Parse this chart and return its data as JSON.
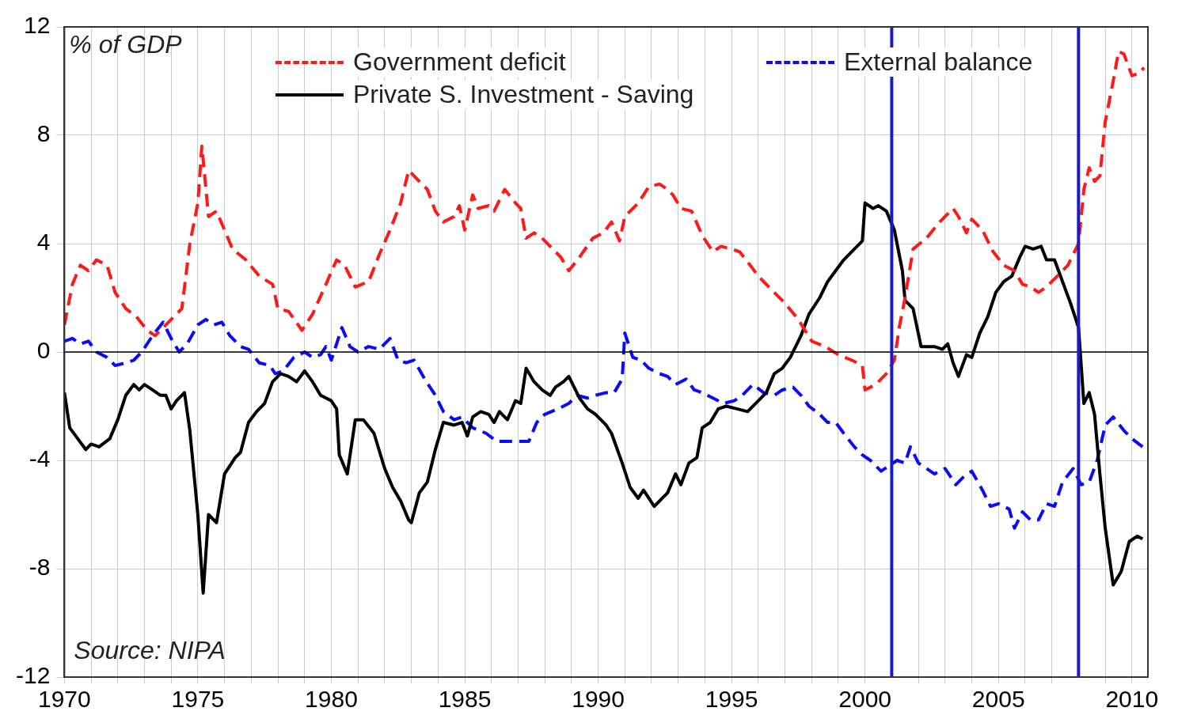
{
  "chart_data": {
    "type": "line",
    "annotations": [
      "% of GDP",
      "Source: NIPA"
    ],
    "xlim": [
      1970,
      2010.6
    ],
    "xticks": [
      1970,
      {
        "value": 1971,
        "label": null
      },
      {
        "value": 1972,
        "label": null
      },
      {
        "value": 1973,
        "label": null
      },
      {
        "value": 1974,
        "label": null
      },
      1975,
      {
        "value": 1976,
        "label": null
      },
      {
        "value": 1977,
        "label": null
      },
      {
        "value": 1978,
        "label": null
      },
      {
        "value": 1979,
        "label": null
      },
      1980,
      {
        "value": 1981,
        "label": null
      },
      {
        "value": 1982,
        "label": null
      },
      {
        "value": 1983,
        "label": null
      },
      {
        "value": 1984,
        "label": null
      },
      1985,
      {
        "value": 1986,
        "label": null
      },
      {
        "value": 1987,
        "label": null
      },
      {
        "value": 1988,
        "label": null
      },
      {
        "value": 1989,
        "label": null
      },
      1990,
      {
        "value": 1991,
        "label": null
      },
      {
        "value": 1992,
        "label": null
      },
      {
        "value": 1993,
        "label": null
      },
      {
        "value": 1994,
        "label": null
      },
      1995,
      {
        "value": 1996,
        "label": null
      },
      {
        "value": 1997,
        "label": null
      },
      {
        "value": 1998,
        "label": null
      },
      {
        "value": 1999,
        "label": null
      },
      2000,
      {
        "value": 2002,
        "label": null
      },
      {
        "value": 2003,
        "label": null
      },
      {
        "value": 2004,
        "label": null
      },
      2005,
      {
        "value": 2006,
        "label": null
      },
      {
        "value": 2007,
        "label": null
      },
      {
        "value": 2009,
        "label": null
      },
      2010
    ],
    "ylim": [
      -12,
      12
    ],
    "yticks": [
      -12,
      -8,
      -4,
      0,
      4,
      8,
      12
    ],
    "grid": true,
    "legend": "top",
    "marker": "none",
    "ref_lines": [
      {
        "axis": "y",
        "value": 0,
        "color": "#000000"
      },
      {
        "axis": "x",
        "value": 2001,
        "color": "#1a1acc"
      },
      {
        "axis": "x",
        "value": 2008,
        "color": "#1a1acc"
      }
    ],
    "series": [
      {
        "name": "Government deficit",
        "color": "#ff1a1a",
        "line_style": "dashed",
        "x": [
          1970.0,
          1970.3,
          1970.6,
          1970.9,
          1971.2,
          1971.6,
          1971.9,
          1972.3,
          1972.7,
          1973.1,
          1973.4,
          1973.7,
          1974.0,
          1974.4,
          1974.7,
          1975.0,
          1975.15,
          1975.4,
          1975.7,
          1976.0,
          1976.3,
          1976.8,
          1977.3,
          1977.8,
          1978.0,
          1978.4,
          1978.9,
          1979.3,
          1979.8,
          1980.2,
          1980.5,
          1980.9,
          1981.4,
          1981.8,
          1982.2,
          1982.6,
          1982.9,
          1983.2,
          1983.6,
          1983.9,
          1984.2,
          1984.6,
          1984.8,
          1985.0,
          1985.3,
          1985.5,
          1985.9,
          1986.1,
          1986.5,
          1986.9,
          1987.1,
          1987.3,
          1987.6,
          1987.9,
          1988.3,
          1988.6,
          1988.9,
          1989.3,
          1989.8,
          1990.2,
          1990.5,
          1990.8,
          1991.0,
          1991.5,
          1991.9,
          1992.3,
          1992.6,
          1992.8,
          1993.1,
          1993.5,
          1993.9,
          1994.3,
          1994.6,
          1995.0,
          1995.3,
          1995.7,
          1996.0,
          1996.5,
          1997.0,
          1997.5,
          1998.0,
          1998.5,
          1999.0,
          1999.5,
          1999.9,
          2000.0,
          2000.4,
          2000.8,
          2001.1,
          2001.3,
          2001.5,
          2001.8,
          2002.3,
          2002.8,
          2003.3,
          2003.5,
          2003.6,
          2003.8,
          2004.0,
          2004.4,
          2004.8,
          2005.2,
          2005.6,
          2005.9,
          2006.2,
          2006.5,
          2006.8,
          2007.2,
          2007.6,
          2008.0,
          2008.2,
          2008.4,
          2008.6,
          2008.8,
          2009.0,
          2009.3,
          2009.5,
          2009.7,
          2010.0,
          2010.3,
          2010.45
        ],
        "values": [
          1.0,
          2.5,
          3.2,
          3.0,
          3.4,
          3.2,
          2.2,
          1.6,
          1.3,
          0.8,
          0.6,
          0.9,
          1.2,
          1.6,
          4.0,
          5.5,
          7.6,
          5.0,
          5.2,
          4.5,
          3.8,
          3.4,
          2.8,
          2.5,
          1.6,
          1.5,
          0.8,
          1.4,
          2.5,
          3.4,
          3.2,
          2.4,
          2.6,
          3.6,
          4.5,
          5.5,
          6.7,
          6.4,
          6.0,
          5.2,
          4.8,
          5.0,
          5.4,
          4.5,
          5.8,
          5.3,
          5.4,
          5.2,
          6.0,
          5.5,
          5.3,
          4.2,
          4.4,
          4.2,
          3.8,
          3.5,
          3.0,
          3.5,
          4.2,
          4.4,
          4.8,
          4.1,
          5.0,
          5.5,
          6.1,
          6.2,
          6.0,
          5.8,
          5.3,
          5.2,
          4.3,
          3.7,
          3.9,
          3.8,
          3.7,
          3.2,
          2.8,
          2.3,
          1.8,
          1.2,
          0.4,
          0.2,
          -0.1,
          -0.3,
          -0.5,
          -1.4,
          -1.2,
          -0.8,
          -0.3,
          1.0,
          2.0,
          3.8,
          4.2,
          4.8,
          5.3,
          5.0,
          4.8,
          4.4,
          4.9,
          4.5,
          3.7,
          3.2,
          3.0,
          2.5,
          2.4,
          2.2,
          2.4,
          2.8,
          3.2,
          4.0,
          6.0,
          6.8,
          6.3,
          6.5,
          8.5,
          10.0,
          11.1,
          11.0,
          10.2,
          10.3,
          10.5
        ]
      },
      {
        "name": "Private S. Investment - Saving",
        "color": "#000000",
        "line_style": "solid",
        "x": [
          1970.0,
          1970.2,
          1970.5,
          1970.8,
          1971.0,
          1971.3,
          1971.7,
          1972.0,
          1972.3,
          1972.6,
          1972.8,
          1973.0,
          1973.3,
          1973.6,
          1973.8,
          1974.0,
          1974.2,
          1974.5,
          1974.7,
          1975.0,
          1975.2,
          1975.4,
          1975.7,
          1976.0,
          1976.4,
          1976.6,
          1976.9,
          1977.2,
          1977.5,
          1977.8,
          1978.1,
          1978.4,
          1978.7,
          1979.0,
          1979.3,
          1979.6,
          1980.0,
          1980.2,
          1980.3,
          1980.6,
          1980.9,
          1981.2,
          1981.6,
          1982.0,
          1982.3,
          1982.6,
          1982.9,
          1983.0,
          1983.3,
          1983.6,
          1983.9,
          1984.2,
          1984.6,
          1984.9,
          1985.1,
          1985.3,
          1985.6,
          1985.9,
          1986.1,
          1986.3,
          1986.6,
          1986.9,
          1987.1,
          1987.3,
          1987.6,
          1987.9,
          1988.2,
          1988.4,
          1988.7,
          1988.9,
          1989.3,
          1989.6,
          1989.9,
          1990.3,
          1990.5,
          1990.9,
          1991.2,
          1991.5,
          1991.7,
          1991.9,
          1992.1,
          1992.4,
          1992.6,
          1992.9,
          1993.1,
          1993.4,
          1993.7,
          1993.9,
          1994.2,
          1994.5,
          1994.8,
          1995.2,
          1995.6,
          1995.9,
          1996.3,
          1996.6,
          1996.9,
          1997.2,
          1997.6,
          1997.9,
          1998.3,
          1998.6,
          1998.9,
          1999.2,
          1999.6,
          1999.9,
          2000.0,
          2000.3,
          2000.5,
          2000.8,
          2001.1,
          2001.4,
          2001.5,
          2001.8,
          2002.1,
          2002.6,
          2002.9,
          2003.1,
          2003.3,
          2003.5,
          2003.8,
          2004.0,
          2004.3,
          2004.6,
          2004.9,
          2005.2,
          2005.5,
          2005.8,
          2006.0,
          2006.3,
          2006.6,
          2006.8,
          2007.1,
          2007.4,
          2007.7,
          2008.0,
          2008.2,
          2008.4,
          2008.6,
          2008.8,
          2009.0,
          2009.3,
          2009.6,
          2009.9,
          2010.2,
          2010.4
        ],
        "values": [
          -1.5,
          -2.8,
          -3.2,
          -3.6,
          -3.4,
          -3.5,
          -3.2,
          -2.5,
          -1.6,
          -1.2,
          -1.4,
          -1.2,
          -1.4,
          -1.6,
          -1.6,
          -2.1,
          -1.8,
          -1.5,
          -2.9,
          -6.0,
          -8.9,
          -6.0,
          -6.3,
          -4.5,
          -3.9,
          -3.7,
          -2.6,
          -2.2,
          -1.9,
          -1.1,
          -0.8,
          -0.9,
          -1.1,
          -0.7,
          -1.1,
          -1.6,
          -1.8,
          -2.1,
          -3.8,
          -4.5,
          -2.5,
          -2.5,
          -3.0,
          -4.3,
          -5.0,
          -5.5,
          -6.2,
          -6.3,
          -5.2,
          -4.8,
          -3.6,
          -2.6,
          -2.7,
          -2.6,
          -3.1,
          -2.4,
          -2.2,
          -2.3,
          -2.6,
          -2.2,
          -2.5,
          -1.8,
          -1.9,
          -0.6,
          -1.1,
          -1.4,
          -1.6,
          -1.3,
          -1.1,
          -0.9,
          -1.7,
          -2.1,
          -2.3,
          -2.7,
          -3.0,
          -4.1,
          -5.0,
          -5.4,
          -5.1,
          -5.4,
          -5.7,
          -5.4,
          -5.2,
          -4.5,
          -4.9,
          -4.1,
          -3.9,
          -2.8,
          -2.6,
          -2.1,
          -2.0,
          -2.1,
          -2.2,
          -1.9,
          -1.5,
          -0.8,
          -0.6,
          -0.2,
          0.6,
          1.4,
          2.0,
          2.6,
          3.0,
          3.4,
          3.8,
          4.1,
          5.5,
          5.3,
          5.4,
          5.2,
          4.5,
          3.0,
          1.9,
          1.6,
          0.2,
          0.2,
          0.1,
          0.3,
          -0.4,
          -0.9,
          -0.1,
          -0.2,
          0.7,
          1.3,
          2.2,
          2.6,
          2.8,
          3.5,
          3.9,
          3.8,
          3.9,
          3.4,
          3.4,
          2.6,
          1.8,
          0.9,
          -1.9,
          -1.5,
          -2.3,
          -4.5,
          -6.5,
          -8.6,
          -8.1,
          -7.0,
          -6.8,
          -6.9
        ]
      },
      {
        "name": "External balance",
        "color": "#0a0aff",
        "line_style": "dashed",
        "x": [
          1970.0,
          1970.3,
          1970.6,
          1970.9,
          1971.2,
          1971.6,
          1971.9,
          1972.3,
          1972.6,
          1972.9,
          1973.3,
          1973.7,
          1974.0,
          1974.3,
          1974.6,
          1975.0,
          1975.3,
          1975.6,
          1975.9,
          1976.2,
          1976.6,
          1976.9,
          1977.3,
          1977.7,
          1977.9,
          1978.2,
          1978.6,
          1979.0,
          1979.3,
          1979.6,
          1979.8,
          1980.0,
          1980.4,
          1980.7,
          1981.0,
          1981.4,
          1981.8,
          1982.2,
          1982.5,
          1982.8,
          1983.1,
          1983.5,
          1983.9,
          1984.2,
          1984.6,
          1984.9,
          1985.3,
          1985.8,
          1986.2,
          1986.6,
          1987.0,
          1987.4,
          1987.7,
          1988.0,
          1988.5,
          1988.9,
          1989.2,
          1989.6,
          1989.9,
          1990.3,
          1990.6,
          1990.9,
          1991.0,
          1991.3,
          1991.6,
          1991.9,
          1992.3,
          1992.6,
          1992.9,
          1993.3,
          1993.6,
          1993.9,
          1994.3,
          1994.7,
          1995.1,
          1995.4,
          1995.8,
          1996.2,
          1996.6,
          1996.9,
          1997.3,
          1997.6,
          1997.9,
          1998.3,
          1998.6,
          1998.9,
          1999.2,
          1999.6,
          1999.9,
          2000.2,
          2000.6,
          2000.9,
          2001.2,
          2001.5,
          2001.7,
          2002.0,
          2002.3,
          2002.6,
          2003.0,
          2003.4,
          2003.7,
          2004.0,
          2004.4,
          2004.7,
          2005.0,
          2005.4,
          2005.6,
          2005.9,
          2006.2,
          2006.5,
          2006.8,
          2007.1,
          2007.4,
          2007.8,
          2008.1,
          2008.4,
          2008.7,
          2009.0,
          2009.3,
          2009.7,
          2010.0,
          2010.4
        ],
        "values": [
          0.4,
          0.5,
          0.3,
          0.4,
          0.0,
          -0.2,
          -0.5,
          -0.4,
          -0.3,
          0.0,
          0.6,
          1.1,
          0.5,
          0.0,
          0.3,
          1.0,
          1.2,
          1.0,
          1.1,
          0.6,
          0.2,
          0.1,
          -0.4,
          -0.5,
          -0.8,
          -0.7,
          -0.2,
          0.0,
          -0.2,
          -0.1,
          0.2,
          -0.3,
          0.9,
          0.2,
          0.0,
          0.2,
          0.1,
          0.5,
          -0.3,
          -0.4,
          -0.3,
          -1.0,
          -1.6,
          -2.2,
          -2.5,
          -2.4,
          -2.8,
          -3.0,
          -3.3,
          -3.3,
          -3.3,
          -3.3,
          -2.6,
          -2.3,
          -2.1,
          -1.9,
          -1.6,
          -1.7,
          -1.6,
          -1.5,
          -1.5,
          -1.0,
          0.7,
          -0.2,
          -0.3,
          -0.6,
          -0.8,
          -0.9,
          -1.2,
          -1.0,
          -1.4,
          -1.5,
          -1.7,
          -1.9,
          -1.8,
          -1.6,
          -1.2,
          -1.5,
          -1.6,
          -1.4,
          -1.3,
          -1.6,
          -2.0,
          -2.3,
          -2.6,
          -2.6,
          -3.0,
          -3.5,
          -3.8,
          -4.0,
          -4.4,
          -4.2,
          -4.0,
          -4.1,
          -3.5,
          -4.1,
          -4.3,
          -4.5,
          -4.3,
          -4.9,
          -4.6,
          -4.4,
          -5.1,
          -5.7,
          -5.6,
          -5.8,
          -6.5,
          -5.9,
          -6.2,
          -6.2,
          -5.6,
          -5.7,
          -4.8,
          -4.3,
          -4.9,
          -4.8,
          -4.0,
          -2.7,
          -2.4,
          -2.9,
          -3.2,
          -3.5
        ]
      }
    ]
  }
}
